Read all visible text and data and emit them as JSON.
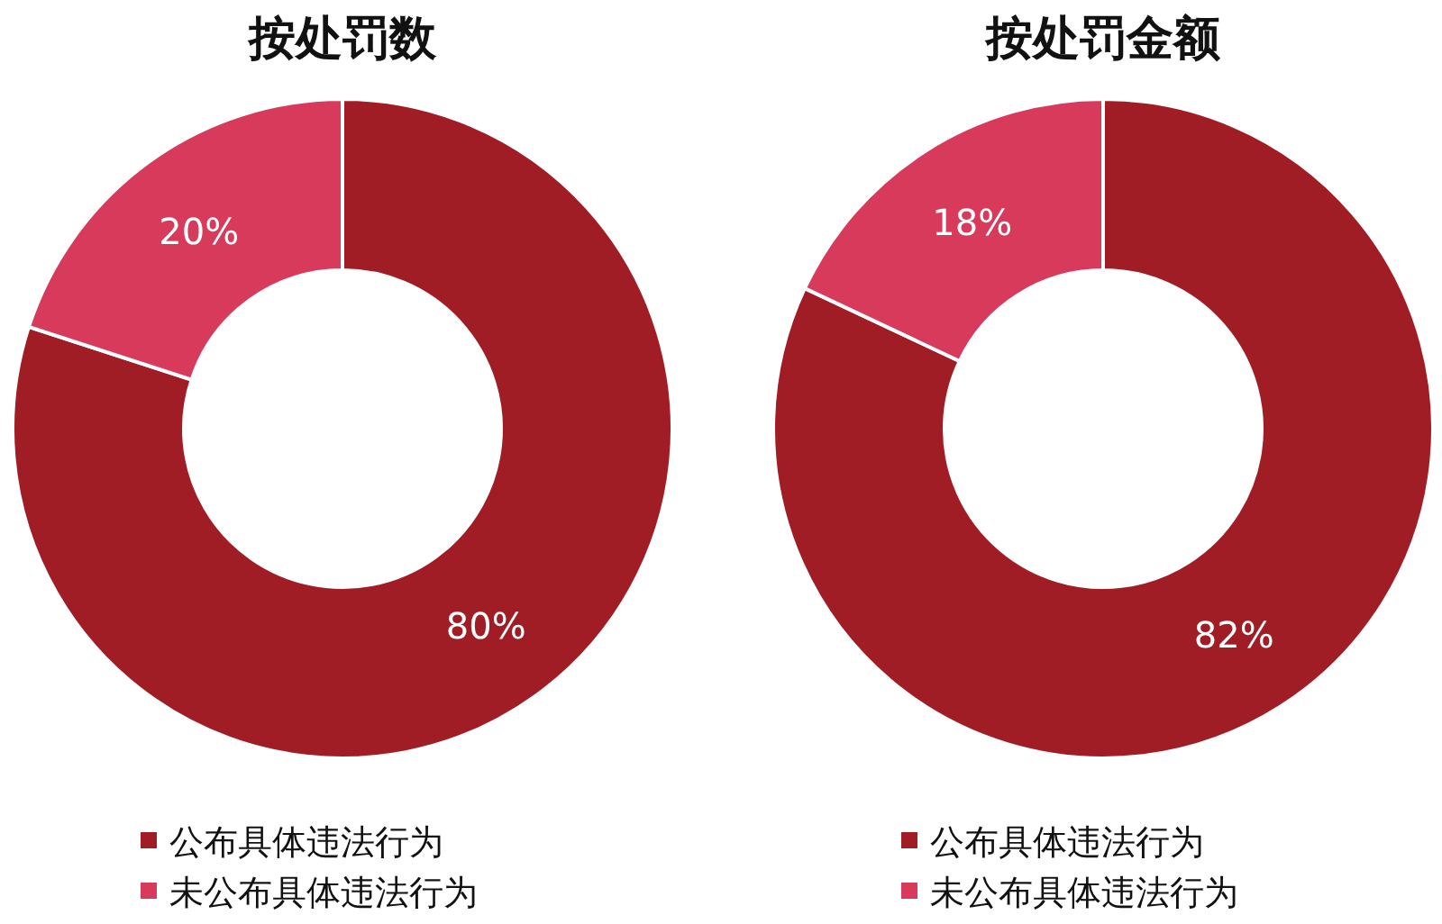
{
  "chart_data": [
    {
      "type": "donut",
      "title": "按处罚数",
      "categories": [
        "公布具体违法行为",
        "未公布具体违法行为"
      ],
      "values": [
        80,
        20
      ],
      "colors": [
        "#a11d25",
        "#d83a5c"
      ],
      "value_labels": [
        "80%",
        "20%"
      ],
      "legend": "bottom"
    },
    {
      "type": "donut",
      "title": "按处罚金额",
      "categories": [
        "公布具体违法行为",
        "未公布具体违法行为"
      ],
      "values": [
        82,
        18
      ],
      "colors": [
        "#a11d25",
        "#d83a5c"
      ],
      "value_labels": [
        "82%",
        "18%"
      ],
      "legend": "bottom"
    }
  ]
}
